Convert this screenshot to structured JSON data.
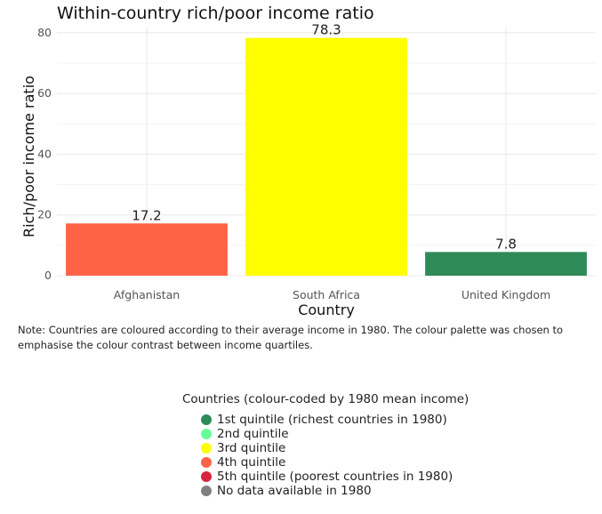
{
  "chart_data": {
    "type": "bar",
    "title": "Within-country rich/poor income ratio",
    "xlabel": "Country",
    "ylabel": "Rich/poor income ratio",
    "categories": [
      "Afghanistan",
      "South Africa",
      "United Kingdom"
    ],
    "values": [
      17.2,
      78.3,
      7.8
    ],
    "value_labels": [
      "17.2",
      "78.3",
      "7.8"
    ],
    "bar_colors": [
      "#ff6347",
      "#ffff00",
      "#2e8b57"
    ],
    "ylim": [
      0,
      82
    ],
    "yticks": [
      0,
      20,
      40,
      60,
      80
    ],
    "grid": true,
    "legend_position": "bottom",
    "legend": {
      "title": "Countries (colour-coded by 1980 mean income)",
      "entries": [
        {
          "label": "1st quintile (richest countries in 1980)",
          "color": "#2e8b57"
        },
        {
          "label": "2nd quintile",
          "color": "#66ff99"
        },
        {
          "label": "3rd quintile",
          "color": "#ffff00"
        },
        {
          "label": "4th quintile",
          "color": "#ff6347"
        },
        {
          "label": "5th quintile (poorest countries in 1980)",
          "color": "#d7263d"
        },
        {
          "label": "No data available in 1980",
          "color": "#808080"
        }
      ]
    }
  },
  "note": "Note: Countries are coloured according to their average income in 1980. The colour palette was chosen to emphasise the colour contrast between income quartiles."
}
